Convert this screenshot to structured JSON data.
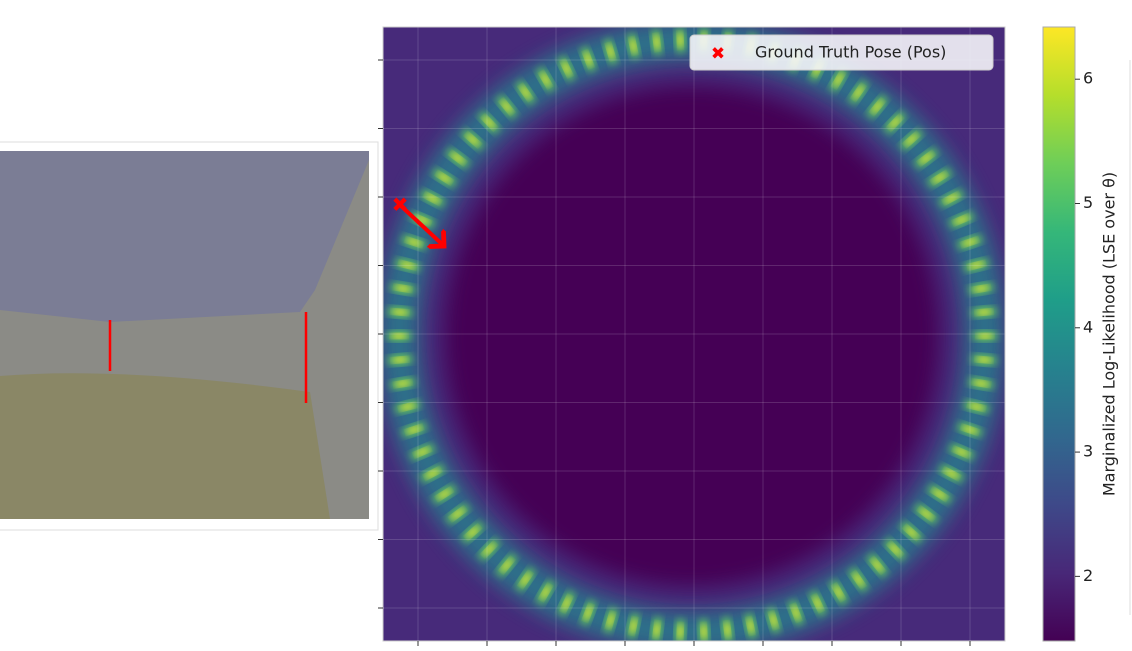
{
  "chart_data": {
    "type": "heatmap",
    "cmap": "viridis",
    "grid": true,
    "legend": {
      "label": "Ground Truth Pose (Pos)",
      "loc": "upper right",
      "color": "#ff0000"
    },
    "colorbar": {
      "label": "Marginalized Log-Likelihood (LSE over θ)",
      "lim": [
        1.48,
        6.42
      ],
      "ticks": [
        2,
        3,
        4,
        5,
        6
      ]
    }
  }
}
